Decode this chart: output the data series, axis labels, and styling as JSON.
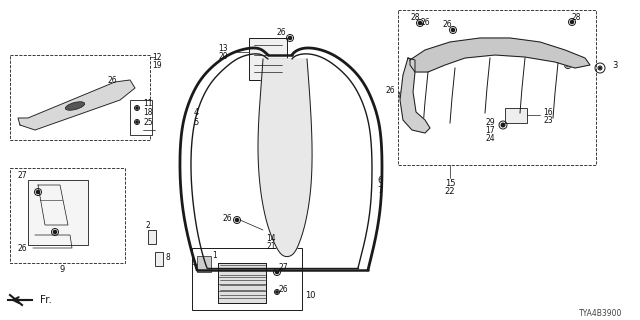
{
  "part_number": "TYA4B3900",
  "bg_color": "#ffffff",
  "line_color": "#1a1a1a",
  "label_color": "#111111"
}
